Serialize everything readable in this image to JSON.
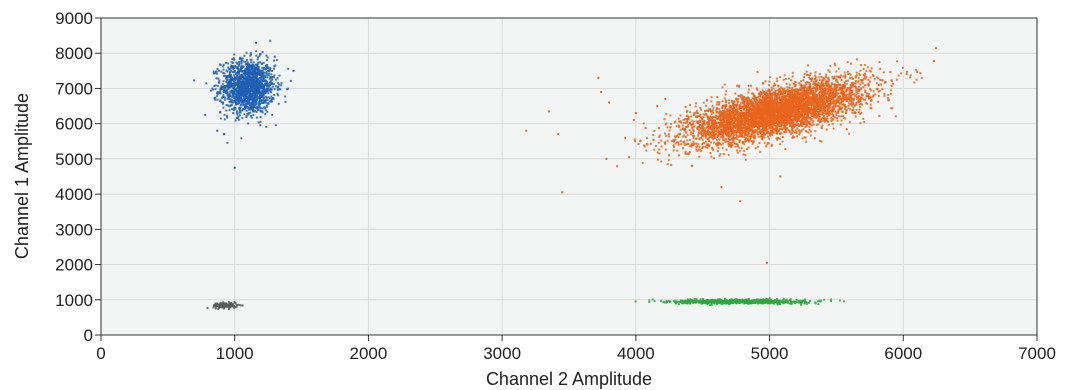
{
  "chart_data": {
    "type": "scatter",
    "xlabel": "Channel 2 Amplitude",
    "ylabel": "Channel 1 Amplitude",
    "xlim": [
      0,
      7000
    ],
    "ylim": [
      0,
      9000
    ],
    "x_ticks": [
      0,
      1000,
      2000,
      3000,
      4000,
      5000,
      6000,
      7000
    ],
    "y_ticks": [
      0,
      1000,
      2000,
      3000,
      4000,
      5000,
      6000,
      7000,
      8000,
      9000
    ],
    "grid": true,
    "background_color": "#f3f5f4",
    "clusters": [
      {
        "color": "#1f5fb4",
        "center": [
          1100,
          7050
        ],
        "spread": [
          100,
          380
        ],
        "count": 1500,
        "outliers": [
          [
            1000,
            4750
          ],
          [
            920,
            5700
          ],
          [
            870,
            5800
          ],
          [
            1300,
            7900
          ],
          [
            1440,
            7500
          ],
          [
            1160,
            8300
          ]
        ]
      },
      {
        "color": "#5a5a5a",
        "center": [
          930,
          840
        ],
        "spread": [
          45,
          40
        ],
        "count": 150,
        "outliers": []
      },
      {
        "color": "#e8651d",
        "center": [
          5050,
          6350
        ],
        "spread": [
          330,
          330
        ],
        "slope": 0.9,
        "count": 5000,
        "outliers": [
          [
            3180,
            5800
          ],
          [
            3350,
            6350
          ],
          [
            3420,
            5700
          ],
          [
            3450,
            4050
          ],
          [
            3720,
            7300
          ],
          [
            3740,
            6900
          ],
          [
            3800,
            6600
          ],
          [
            3780,
            5000
          ],
          [
            3920,
            5600
          ],
          [
            4000,
            6300
          ],
          [
            4160,
            6500
          ],
          [
            4220,
            6700
          ],
          [
            4420,
            4800
          ],
          [
            4640,
            4200
          ],
          [
            4780,
            3800
          ],
          [
            4980,
            2050
          ],
          [
            5080,
            4500
          ],
          [
            6230,
            7780
          ]
        ]
      },
      {
        "color": "#2aaa3e",
        "center": [
          4780,
          950
        ],
        "spread": [
          240,
          30
        ],
        "count": 800,
        "outliers": [
          [
            4300,
            900
          ],
          [
            5380,
            950
          ]
        ]
      }
    ]
  }
}
